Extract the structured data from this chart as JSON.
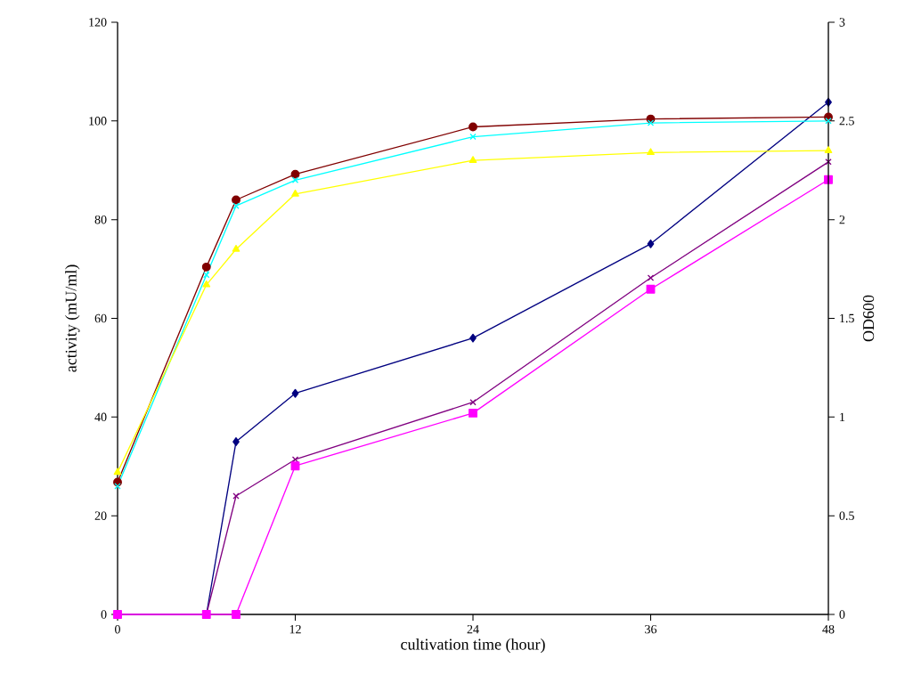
{
  "chart_data": {
    "type": "line",
    "xlabel": "cultivation time (hour)",
    "ylabel": "activity (mU/ml)",
    "y2label": "OD600",
    "x": [
      0,
      6,
      8,
      12,
      24,
      36,
      48
    ],
    "xlim": [
      0,
      48
    ],
    "xticks": [
      0,
      12,
      24,
      36,
      48
    ],
    "ylim": [
      0,
      120
    ],
    "yticks": [
      0,
      20,
      40,
      60,
      80,
      100,
      120
    ],
    "y2lim": [
      0,
      3
    ],
    "y2ticks": [
      0,
      0.5,
      1,
      1.5,
      2,
      2.5,
      3
    ],
    "grid": false,
    "line_style": "solid",
    "series": [
      {
        "color": "#000080",
        "marker": "diamond",
        "values": [
          0,
          0,
          35,
          44.8,
          56,
          75.1,
          103.8
        ]
      },
      {
        "color": "#800080",
        "marker": "cross",
        "values": [
          0,
          0,
          24,
          31.4,
          43,
          68.2,
          91.7
        ]
      },
      {
        "color": "#ff00ff",
        "marker": "square",
        "values": [
          0,
          0,
          0,
          30.1,
          40.8,
          65.9,
          88.1
        ]
      },
      {
        "color": "#800000",
        "marker": "circle",
        "axis": "y2",
        "values": [
          0.67,
          1.76,
          2.1,
          2.23,
          2.47,
          2.51,
          2.52
        ]
      },
      {
        "color": "#00ffff",
        "marker": "cross",
        "axis": "y2",
        "values": [
          0.65,
          1.72,
          2.07,
          2.2,
          2.42,
          2.49,
          2.5
        ]
      },
      {
        "color": "#ffff00",
        "marker": "triangle",
        "axis": "y2",
        "values": [
          0.72,
          1.67,
          1.85,
          2.13,
          2.3,
          2.34,
          2.35
        ]
      }
    ]
  }
}
